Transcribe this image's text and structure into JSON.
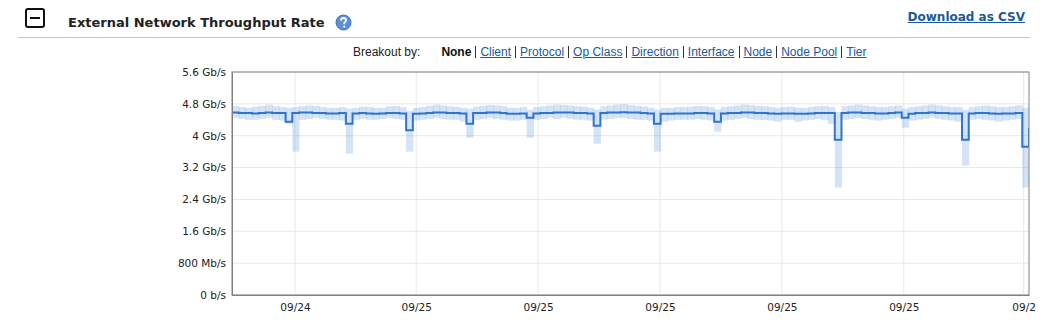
{
  "chart_data": {
    "type": "line",
    "title": "External Network Throughput Rate",
    "download_link": "Download as CSV",
    "breakout_label": "Breakout by:",
    "breakout_options": [
      "None",
      "Client",
      "Protocol",
      "Op Class",
      "Direction",
      "Interface",
      "Node",
      "Node Pool",
      "Tier"
    ],
    "x": [
      0,
      1,
      2,
      3,
      4,
      5,
      6,
      7,
      8,
      9,
      10,
      11,
      12,
      13,
      14,
      15,
      16,
      17,
      18,
      19,
      20,
      21,
      22,
      23,
      24,
      25,
      26,
      27,
      28,
      29,
      30,
      31,
      32,
      33,
      34,
      35,
      36,
      37,
      38,
      39,
      40,
      41,
      42,
      43,
      44,
      45,
      46,
      47,
      48,
      49,
      50,
      51,
      52,
      53,
      54,
      55,
      56,
      57,
      58,
      59,
      60,
      61,
      62,
      63,
      64,
      65,
      66,
      67,
      68,
      69,
      70,
      71,
      72,
      73,
      74,
      75,
      76,
      77,
      78,
      79,
      80,
      81,
      82,
      83,
      84,
      85,
      86,
      87,
      88,
      89,
      90,
      91,
      92,
      93,
      94,
      95,
      96,
      97,
      98,
      99,
      100,
      101,
      102,
      103,
      104,
      105,
      106,
      107,
      108,
      109,
      110,
      111,
      112,
      113,
      114,
      115,
      116,
      117,
      118,
      119
    ],
    "xlim": [
      0,
      119
    ],
    "xticks": [
      {
        "value": 9.4,
        "label": "09/24"
      },
      {
        "value": 27.5,
        "label": "09/25"
      },
      {
        "value": 45.7,
        "label": "09/25"
      },
      {
        "value": 63.9,
        "label": "09/25"
      },
      {
        "value": 82.1,
        "label": "09/25"
      },
      {
        "value": 100.3,
        "label": "09/25"
      },
      {
        "value": 118.2,
        "label": "09/2"
      }
    ],
    "ylim": [
      0,
      5.6
    ],
    "yticks": [
      {
        "value": 0,
        "label": "0 b/s"
      },
      {
        "value": 0.8,
        "label": "800 Mb/s"
      },
      {
        "value": 1.6,
        "label": "1.6 Gb/s"
      },
      {
        "value": 2.4,
        "label": "2.4 Gb/s"
      },
      {
        "value": 3.2,
        "label": "3.2 Gb/s"
      },
      {
        "value": 4,
        "label": "4 Gb/s"
      },
      {
        "value": 4.8,
        "label": "4.8 Gb/s"
      },
      {
        "value": 5.6,
        "label": "5.6 Gb/s"
      }
    ],
    "grid": true,
    "line_style": "step",
    "series": [
      {
        "color": "#2f74d0",
        "values": [
          4.58,
          4.57,
          4.57,
          4.56,
          4.57,
          4.58,
          4.57,
          4.57,
          4.35,
          4.57,
          4.58,
          4.58,
          4.57,
          4.57,
          4.56,
          4.56,
          4.57,
          4.3,
          4.56,
          4.57,
          4.56,
          4.55,
          4.56,
          4.57,
          4.57,
          4.56,
          4.14,
          4.55,
          4.56,
          4.57,
          4.58,
          4.58,
          4.57,
          4.57,
          4.56,
          4.3,
          4.57,
          4.57,
          4.58,
          4.58,
          4.57,
          4.55,
          4.55,
          4.56,
          4.45,
          4.56,
          4.57,
          4.57,
          4.58,
          4.58,
          4.58,
          4.57,
          4.57,
          4.56,
          4.25,
          4.57,
          4.58,
          4.58,
          4.59,
          4.58,
          4.58,
          4.57,
          4.56,
          4.3,
          4.55,
          4.55,
          4.56,
          4.56,
          4.56,
          4.57,
          4.57,
          4.56,
          4.35,
          4.56,
          4.57,
          4.57,
          4.58,
          4.58,
          4.57,
          4.57,
          4.56,
          4.55,
          4.56,
          4.56,
          4.55,
          4.55,
          4.56,
          4.57,
          4.57,
          4.57,
          3.9,
          4.57,
          4.58,
          4.58,
          4.57,
          4.57,
          4.56,
          4.56,
          4.57,
          4.58,
          4.45,
          4.55,
          4.57,
          4.57,
          4.58,
          4.57,
          4.57,
          4.56,
          4.56,
          3.9,
          4.56,
          4.57,
          4.57,
          4.56,
          4.55,
          4.56,
          4.56,
          4.57,
          3.72,
          4.2
        ],
        "low": [
          4.45,
          4.42,
          4.4,
          4.4,
          4.42,
          4.45,
          4.4,
          4.38,
          4.3,
          3.6,
          4.4,
          4.42,
          4.45,
          4.42,
          4.4,
          4.4,
          4.38,
          3.55,
          4.4,
          4.42,
          4.4,
          4.4,
          4.42,
          4.45,
          4.42,
          4.4,
          3.6,
          4.38,
          4.4,
          4.42,
          4.45,
          4.42,
          4.4,
          4.4,
          4.35,
          3.95,
          4.4,
          4.42,
          4.45,
          4.42,
          4.4,
          4.38,
          4.38,
          4.4,
          3.95,
          4.4,
          4.42,
          4.45,
          4.42,
          4.45,
          4.42,
          4.4,
          4.4,
          4.38,
          3.8,
          4.4,
          4.42,
          4.45,
          4.45,
          4.42,
          4.4,
          4.4,
          4.38,
          3.6,
          4.35,
          4.38,
          4.4,
          4.4,
          4.4,
          4.42,
          4.4,
          4.38,
          4.1,
          4.38,
          4.4,
          4.42,
          4.45,
          4.42,
          4.4,
          4.4,
          4.38,
          4.35,
          4.4,
          4.4,
          4.35,
          4.38,
          4.4,
          4.42,
          4.4,
          4.3,
          2.7,
          4.4,
          4.42,
          4.45,
          4.42,
          4.4,
          4.38,
          4.4,
          4.42,
          4.45,
          4.2,
          4.38,
          4.4,
          4.42,
          4.45,
          4.42,
          4.4,
          4.38,
          4.35,
          3.25,
          4.4,
          4.42,
          4.4,
          4.38,
          4.35,
          4.38,
          4.4,
          4.42,
          2.7,
          3.8
        ],
        "high": [
          4.75,
          4.72,
          4.7,
          4.73,
          4.75,
          4.78,
          4.74,
          4.72,
          4.7,
          4.72,
          4.74,
          4.76,
          4.75,
          4.72,
          4.7,
          4.7,
          4.72,
          4.68,
          4.7,
          4.73,
          4.72,
          4.7,
          4.7,
          4.74,
          4.75,
          4.72,
          4.62,
          4.7,
          4.72,
          4.75,
          4.78,
          4.76,
          4.74,
          4.72,
          4.7,
          4.68,
          4.73,
          4.75,
          4.77,
          4.76,
          4.74,
          4.7,
          4.7,
          4.72,
          4.65,
          4.72,
          4.74,
          4.76,
          4.78,
          4.77,
          4.76,
          4.74,
          4.73,
          4.7,
          4.66,
          4.74,
          4.76,
          4.78,
          4.8,
          4.77,
          4.75,
          4.73,
          4.7,
          4.65,
          4.7,
          4.7,
          4.72,
          4.72,
          4.73,
          4.75,
          4.74,
          4.72,
          4.66,
          4.72,
          4.74,
          4.76,
          4.78,
          4.77,
          4.75,
          4.74,
          4.72,
          4.7,
          4.72,
          4.73,
          4.7,
          4.7,
          4.72,
          4.74,
          4.75,
          4.72,
          4.6,
          4.74,
          4.76,
          4.78,
          4.76,
          4.74,
          4.72,
          4.72,
          4.74,
          4.76,
          4.68,
          4.72,
          4.74,
          4.76,
          4.78,
          4.76,
          4.74,
          4.72,
          4.72,
          4.65,
          4.72,
          4.74,
          4.76,
          4.74,
          4.72,
          4.72,
          4.74,
          4.76,
          4.7,
          4.6
        ]
      }
    ]
  }
}
